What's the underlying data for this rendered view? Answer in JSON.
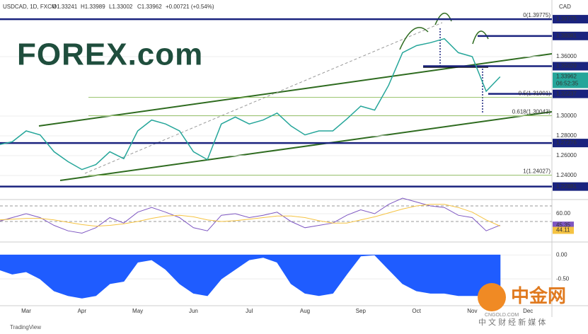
{
  "header": {
    "symbol": "USDCAD, 1D, FXCM",
    "open": "O1.33241",
    "high": "H1.33989",
    "low": "L1.33002",
    "close": "C1.33962",
    "change": "+0.00721 (+0.54%)"
  },
  "logo": "FOREX.com",
  "footer": "TradingView",
  "watermark": {
    "name": "中金网",
    "site": "CNGOLD.COM",
    "tagline": "中 文 财 经 新 媒 体"
  },
  "chart_data": [
    {
      "type": "line",
      "currency": "CAD",
      "color": "#26a69a",
      "categories": [
        null,
        null,
        "Mar",
        null,
        null,
        null,
        "Apr",
        null,
        null,
        null,
        "May",
        null,
        null,
        null,
        "Jun",
        null,
        null,
        null,
        "Jul",
        null,
        null,
        null,
        "Aug",
        null,
        null,
        null,
        "Sep",
        null,
        null,
        null,
        "Oct",
        null,
        null,
        null,
        "Nov",
        null,
        null,
        null,
        "Dec"
      ],
      "values": [
        1.271,
        1.274,
        1.285,
        1.281,
        1.264,
        1.254,
        1.246,
        1.251,
        1.264,
        1.257,
        1.285,
        1.296,
        1.292,
        1.285,
        1.264,
        1.256,
        1.292,
        1.299,
        1.292,
        1.296,
        1.303,
        1.29,
        1.281,
        1.285,
        1.285,
        1.297,
        1.31,
        1.306,
        1.331,
        1.364,
        1.371,
        1.374,
        1.378,
        1.364,
        1.36,
        1.325,
        1.33962,
        null,
        null
      ],
      "countdown": "06:52:35",
      "ylim": [
        1.2157,
        1.4171
      ],
      "yticks": [
        {
          "value": 1.36,
          "label": "1.36000"
        },
        {
          "value": 1.3,
          "label": "1.30000"
        },
        {
          "value": 1.28,
          "label": "1.28000"
        },
        {
          "value": 1.26,
          "label": "1.26000"
        },
        {
          "value": 1.24,
          "label": "1.24000"
        }
      ],
      "levels": [
        1.39775,
        1.38081,
        1.35029,
        1.32237,
        1.27276,
        1.22881
      ],
      "level_color": "#1a237e",
      "fib_levels": [
        {
          "value": 1.39775,
          "label": "0(1.39775)"
        },
        {
          "value": 1.31901,
          "label": "0.5(1.31901)"
        },
        {
          "value": 1.30043,
          "label": "0.618(1.30043)"
        },
        {
          "value": 1.24027,
          "label": "1(1.24027)"
        }
      ]
    },
    {
      "type": "line",
      "series": [
        {
          "color": "#7e57c2",
          "values": [
            50,
            55,
            60,
            55,
            45,
            38,
            35,
            42,
            55,
            48,
            62,
            68,
            62,
            55,
            42,
            38,
            58,
            60,
            55,
            58,
            62,
            50,
            42,
            45,
            48,
            58,
            65,
            60,
            72,
            80,
            75,
            70,
            68,
            58,
            55,
            38,
            45.35,
            null,
            null
          ]
        },
        {
          "color": "#f5c342",
          "values": [
            52,
            53,
            54,
            54,
            52,
            49,
            46,
            44,
            45,
            47,
            50,
            54,
            57,
            58,
            56,
            52,
            50,
            51,
            53,
            55,
            57,
            57,
            55,
            51,
            48,
            48,
            52,
            56,
            61,
            66,
            70,
            72,
            72,
            68,
            62,
            52,
            44.11,
            null,
            null
          ]
        }
      ],
      "ylim": [
        25.5,
        78.2
      ],
      "yticks": [
        {
          "value": 60,
          "label": "60.00"
        }
      ],
      "bands": [
        70,
        50
      ]
    },
    {
      "type": "area",
      "color": "#1f5cff",
      "values": [
        -0.3,
        -0.4,
        -0.35,
        -0.5,
        -0.75,
        -0.85,
        -0.9,
        -0.85,
        -0.6,
        -0.55,
        -0.15,
        -0.1,
        -0.3,
        -0.6,
        -0.8,
        -0.85,
        -0.5,
        -0.3,
        -0.1,
        -0.05,
        -0.15,
        -0.6,
        -0.8,
        -0.85,
        -0.8,
        -0.4,
        -0.02,
        0,
        -0.3,
        -0.6,
        -0.75,
        -0.8,
        -0.8,
        -0.85,
        -0.85,
        -0.85,
        -0.85,
        null,
        null
      ],
      "ylim": [
        -1.06,
        0.227
      ],
      "yticks": [
        {
          "value": 0,
          "label": "0.00"
        },
        {
          "value": -0.5,
          "label": "-0.50"
        }
      ]
    }
  ]
}
